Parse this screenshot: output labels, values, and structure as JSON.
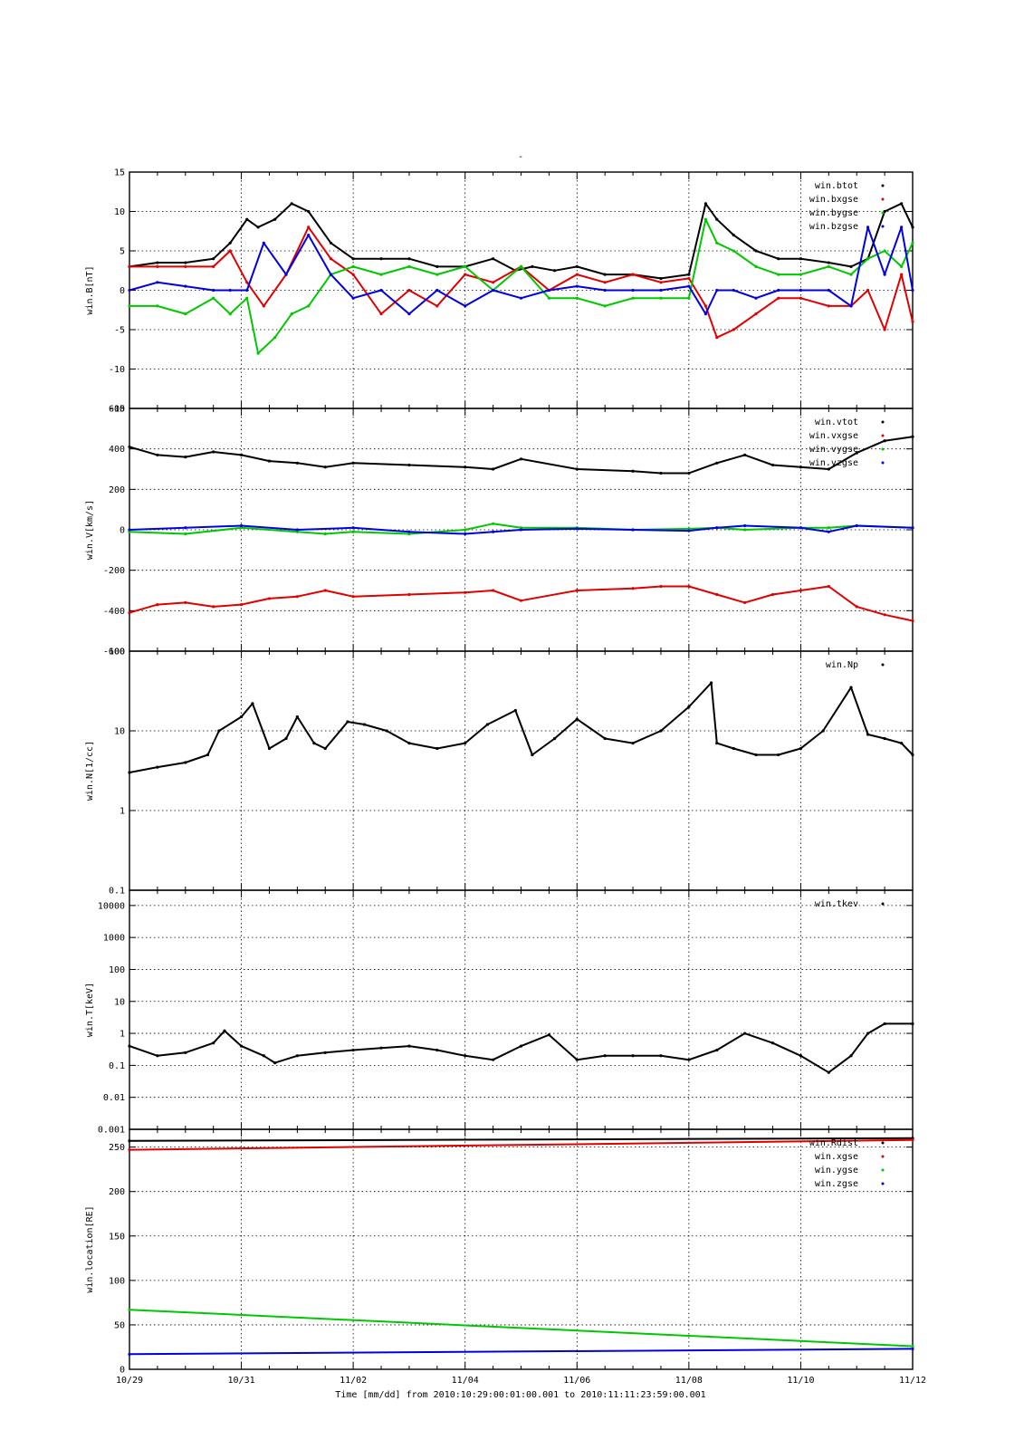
{
  "figure": {
    "title": "-",
    "time_axis_label": "Time [mm/dd]  from 2010:10:29:00:01:00.001  to  2010:11:11:23:59:00.001",
    "x_ticks": [
      "10/29",
      "10/31",
      "11/02",
      "11/04",
      "11/06",
      "11/08",
      "11/10",
      "11/12"
    ]
  },
  "chart_data": [
    {
      "type": "line",
      "ylabel": "win.B[nT]",
      "scale": "linear",
      "ylim": [
        -15,
        15
      ],
      "y_ticks": [
        "15",
        "10",
        "5",
        "0",
        "-5",
        "-10",
        "-15"
      ],
      "y_tick_values": [
        15,
        10,
        5,
        0,
        -5,
        -10,
        -15
      ],
      "grid": true,
      "legend_position": "top-right",
      "x_range_days": [
        0,
        14
      ],
      "series": [
        {
          "name": "win.btot",
          "color": "#000000",
          "x": [
            0,
            0.5,
            1.0,
            1.5,
            1.8,
            2.1,
            2.3,
            2.6,
            2.9,
            3.2,
            3.6,
            4.0,
            4.5,
            5.0,
            5.5,
            6.0,
            6.5,
            6.9,
            7.2,
            7.6,
            8.0,
            8.5,
            9.0,
            9.5,
            10.0,
            10.3,
            10.5,
            10.8,
            11.2,
            11.6,
            12.0,
            12.5,
            12.9,
            13.2,
            13.5,
            13.8,
            14.0
          ],
          "y": [
            3,
            3.5,
            3.5,
            4,
            6,
            9,
            8,
            9,
            11,
            10,
            6,
            4,
            4,
            4,
            3,
            3,
            4,
            2.5,
            3,
            2.5,
            3,
            2,
            2,
            1.5,
            2,
            11,
            9,
            7,
            5,
            4,
            4,
            3.5,
            3,
            4,
            10,
            11,
            8
          ]
        },
        {
          "name": "win.bxgse",
          "color": "#e00000",
          "x": [
            0,
            0.5,
            1.0,
            1.5,
            1.8,
            2.1,
            2.4,
            2.8,
            3.2,
            3.6,
            4.0,
            4.5,
            5.0,
            5.5,
            6.0,
            6.5,
            7.0,
            7.5,
            8.0,
            8.5,
            9.0,
            9.5,
            10.0,
            10.3,
            10.5,
            10.8,
            11.2,
            11.6,
            12.0,
            12.5,
            12.9,
            13.2,
            13.5,
            13.8,
            14.0
          ],
          "y": [
            3,
            3,
            3,
            3,
            5,
            1,
            -2,
            2,
            8,
            4,
            2,
            -3,
            0,
            -2,
            2,
            1,
            3,
            0,
            2,
            1,
            2,
            1,
            1.5,
            -2,
            -6,
            -5,
            -3,
            -1,
            -1,
            -2,
            -2,
            0,
            -5,
            2,
            -4
          ]
        },
        {
          "name": "win.bygse",
          "color": "#00c800",
          "x": [
            0,
            0.5,
            1.0,
            1.5,
            1.8,
            2.1,
            2.3,
            2.6,
            2.9,
            3.2,
            3.6,
            4.0,
            4.5,
            5.0,
            5.5,
            6.0,
            6.5,
            7.0,
            7.5,
            8.0,
            8.5,
            9.0,
            9.5,
            10.0,
            10.3,
            10.5,
            10.8,
            11.2,
            11.6,
            12.0,
            12.5,
            12.9,
            13.2,
            13.5,
            13.8,
            14.0
          ],
          "y": [
            -2,
            -2,
            -3,
            -1,
            -3,
            -1,
            -8,
            -6,
            -3,
            -2,
            2,
            3,
            2,
            3,
            2,
            3,
            0,
            3,
            -1,
            -1,
            -2,
            -1,
            -1,
            -1,
            9,
            6,
            5,
            3,
            2,
            2,
            3,
            2,
            4,
            5,
            3,
            6
          ]
        },
        {
          "name": "win.bzgse",
          "color": "#0000e0",
          "x": [
            0,
            0.5,
            1.0,
            1.5,
            1.8,
            2.1,
            2.4,
            2.8,
            3.2,
            3.6,
            4.0,
            4.5,
            5.0,
            5.5,
            6.0,
            6.5,
            7.0,
            7.5,
            8.0,
            8.5,
            9.0,
            9.5,
            10.0,
            10.3,
            10.5,
            10.8,
            11.2,
            11.6,
            12.0,
            12.5,
            12.9,
            13.2,
            13.5,
            13.8,
            14.0
          ],
          "y": [
            0,
            1,
            0.5,
            0,
            0,
            0,
            6,
            2,
            7,
            2,
            -1,
            0,
            -3,
            0,
            -2,
            0,
            -1,
            0,
            0.5,
            0,
            0,
            0,
            0.5,
            -3,
            0,
            0,
            -1,
            0,
            0,
            0,
            -2,
            8,
            2,
            8,
            0
          ]
        }
      ]
    },
    {
      "type": "line",
      "ylabel": "win.V[km/s]",
      "scale": "linear",
      "ylim": [
        -600,
        600
      ],
      "y_ticks": [
        "600",
        "400",
        "200",
        "0",
        "-200",
        "-400",
        "-600"
      ],
      "y_tick_values": [
        600,
        400,
        200,
        0,
        -200,
        -400,
        -600
      ],
      "grid": true,
      "legend_position": "top-right",
      "x_range_days": [
        0,
        14
      ],
      "series": [
        {
          "name": "win.vtot",
          "color": "#000000",
          "x": [
            0,
            0.5,
            1.0,
            1.5,
            2.0,
            2.5,
            3.0,
            3.5,
            4.0,
            5.0,
            6.0,
            6.5,
            7.0,
            8.0,
            9.0,
            9.5,
            10.0,
            10.5,
            11.0,
            11.5,
            12.0,
            12.5,
            13.0,
            13.5,
            14.0
          ],
          "y": [
            410,
            370,
            360,
            385,
            370,
            340,
            330,
            310,
            330,
            320,
            310,
            300,
            350,
            300,
            290,
            280,
            280,
            330,
            370,
            320,
            310,
            300,
            380,
            440,
            460
          ]
        },
        {
          "name": "win.vxgse",
          "color": "#e00000",
          "x": [
            0,
            0.5,
            1.0,
            1.5,
            2.0,
            2.5,
            3.0,
            3.5,
            4.0,
            5.0,
            6.0,
            6.5,
            7.0,
            8.0,
            9.0,
            9.5,
            10.0,
            10.5,
            11.0,
            11.5,
            12.0,
            12.5,
            13.0,
            13.5,
            14.0
          ],
          "y": [
            -410,
            -370,
            -360,
            -380,
            -370,
            -340,
            -330,
            -300,
            -330,
            -320,
            -310,
            -300,
            -350,
            -300,
            -290,
            -280,
            -280,
            -320,
            -360,
            -320,
            -300,
            -280,
            -380,
            -420,
            -450
          ]
        },
        {
          "name": "win.vygse",
          "color": "#00c800",
          "x": [
            0,
            1.0,
            2.0,
            3.0,
            3.5,
            4.0,
            5.0,
            6.0,
            6.5,
            7.0,
            8.0,
            9.0,
            10.0,
            10.5,
            11.0,
            12.0,
            12.5,
            13.0,
            14.0
          ],
          "y": [
            -10,
            -20,
            10,
            -10,
            -20,
            -10,
            -20,
            0,
            30,
            10,
            10,
            0,
            5,
            10,
            0,
            10,
            10,
            20,
            10
          ]
        },
        {
          "name": "win.vzgse",
          "color": "#0000e0",
          "x": [
            0,
            1.0,
            2.0,
            3.0,
            4.0,
            5.0,
            6.0,
            6.5,
            7.0,
            8.0,
            9.0,
            10.0,
            10.5,
            11.0,
            12.0,
            12.5,
            13.0,
            14.0
          ],
          "y": [
            0,
            10,
            20,
            0,
            10,
            -10,
            -20,
            -10,
            0,
            5,
            0,
            -5,
            10,
            20,
            10,
            -10,
            20,
            10
          ]
        }
      ]
    },
    {
      "type": "scatter",
      "ylabel": "win.N[1/cc]",
      "scale": "log",
      "ylim": [
        0.1,
        100
      ],
      "y_ticks": [
        "100",
        "10",
        "1",
        "0.1"
      ],
      "y_tick_values": [
        100,
        10,
        1,
        0.1
      ],
      "grid": true,
      "legend_position": "top-right",
      "x_range_days": [
        0,
        14
      ],
      "series": [
        {
          "name": "win.Np",
          "color": "#000000",
          "x": [
            0,
            0.5,
            1.0,
            1.4,
            1.6,
            2.0,
            2.2,
            2.5,
            2.8,
            3.0,
            3.3,
            3.5,
            3.9,
            4.2,
            4.6,
            5.0,
            5.5,
            6.0,
            6.4,
            6.9,
            7.2,
            7.6,
            8.0,
            8.5,
            9.0,
            9.5,
            10.0,
            10.4,
            10.5,
            10.8,
            11.2,
            11.6,
            12.0,
            12.4,
            12.9,
            13.2,
            13.5,
            13.8,
            14.0
          ],
          "y": [
            3,
            3.5,
            4,
            5,
            10,
            15,
            22,
            6,
            8,
            15,
            7,
            6,
            13,
            12,
            10,
            7,
            6,
            7,
            12,
            18,
            5,
            8,
            14,
            8,
            7,
            10,
            20,
            40,
            7,
            6,
            5,
            5,
            6,
            10,
            35,
            9,
            8,
            7,
            5
          ]
        }
      ]
    },
    {
      "type": "scatter",
      "ylabel": "win.T[keV]",
      "scale": "log",
      "ylim": [
        0.001,
        30000
      ],
      "y_ticks": [
        "10000",
        "1000",
        "100",
        "10",
        "1",
        "0.1",
        "0.01",
        "0.001"
      ],
      "y_tick_values": [
        10000,
        1000,
        100,
        10,
        1,
        0.1,
        0.01,
        0.001
      ],
      "grid": true,
      "legend_position": "top-right",
      "x_range_days": [
        0,
        14
      ],
      "series": [
        {
          "name": "win.tkev",
          "color": "#000000",
          "x": [
            0,
            0.5,
            1.0,
            1.5,
            1.7,
            2.0,
            2.4,
            2.6,
            3.0,
            3.5,
            4.0,
            4.5,
            5.0,
            5.5,
            6.0,
            6.5,
            7.0,
            7.5,
            8.0,
            8.5,
            9.0,
            9.5,
            10.0,
            10.5,
            11.0,
            11.5,
            12.0,
            12.5,
            12.9,
            13.2,
            13.5,
            14.0
          ],
          "y": [
            0.4,
            0.2,
            0.25,
            0.5,
            1.2,
            0.4,
            0.2,
            0.12,
            0.2,
            0.25,
            0.3,
            0.35,
            0.4,
            0.3,
            0.2,
            0.15,
            0.4,
            0.9,
            0.15,
            0.2,
            0.2,
            0.2,
            0.15,
            0.3,
            1.0,
            0.5,
            0.2,
            0.06,
            0.2,
            1.0,
            2.0,
            2.0
          ]
        }
      ]
    },
    {
      "type": "line",
      "ylabel": "win.location[RE]",
      "scale": "linear",
      "ylim": [
        0,
        270
      ],
      "y_ticks": [
        "250",
        "200",
        "150",
        "100",
        "50",
        "0"
      ],
      "y_tick_values": [
        250,
        200,
        150,
        100,
        50,
        0
      ],
      "grid": true,
      "legend_position": "top-right",
      "x_range_days": [
        0,
        14
      ],
      "series": [
        {
          "name": "win.Rdist",
          "color": "#000000",
          "x": [
            0,
            14
          ],
          "y": [
            257,
            260
          ]
        },
        {
          "name": "win.xgse",
          "color": "#e00000",
          "x": [
            0,
            14
          ],
          "y": [
            247,
            258
          ]
        },
        {
          "name": "win.ygse",
          "color": "#00c800",
          "x": [
            0,
            14
          ],
          "y": [
            67,
            26
          ]
        },
        {
          "name": "win.zgse",
          "color": "#0000e0",
          "x": [
            0,
            14
          ],
          "y": [
            17,
            23
          ]
        }
      ]
    }
  ]
}
